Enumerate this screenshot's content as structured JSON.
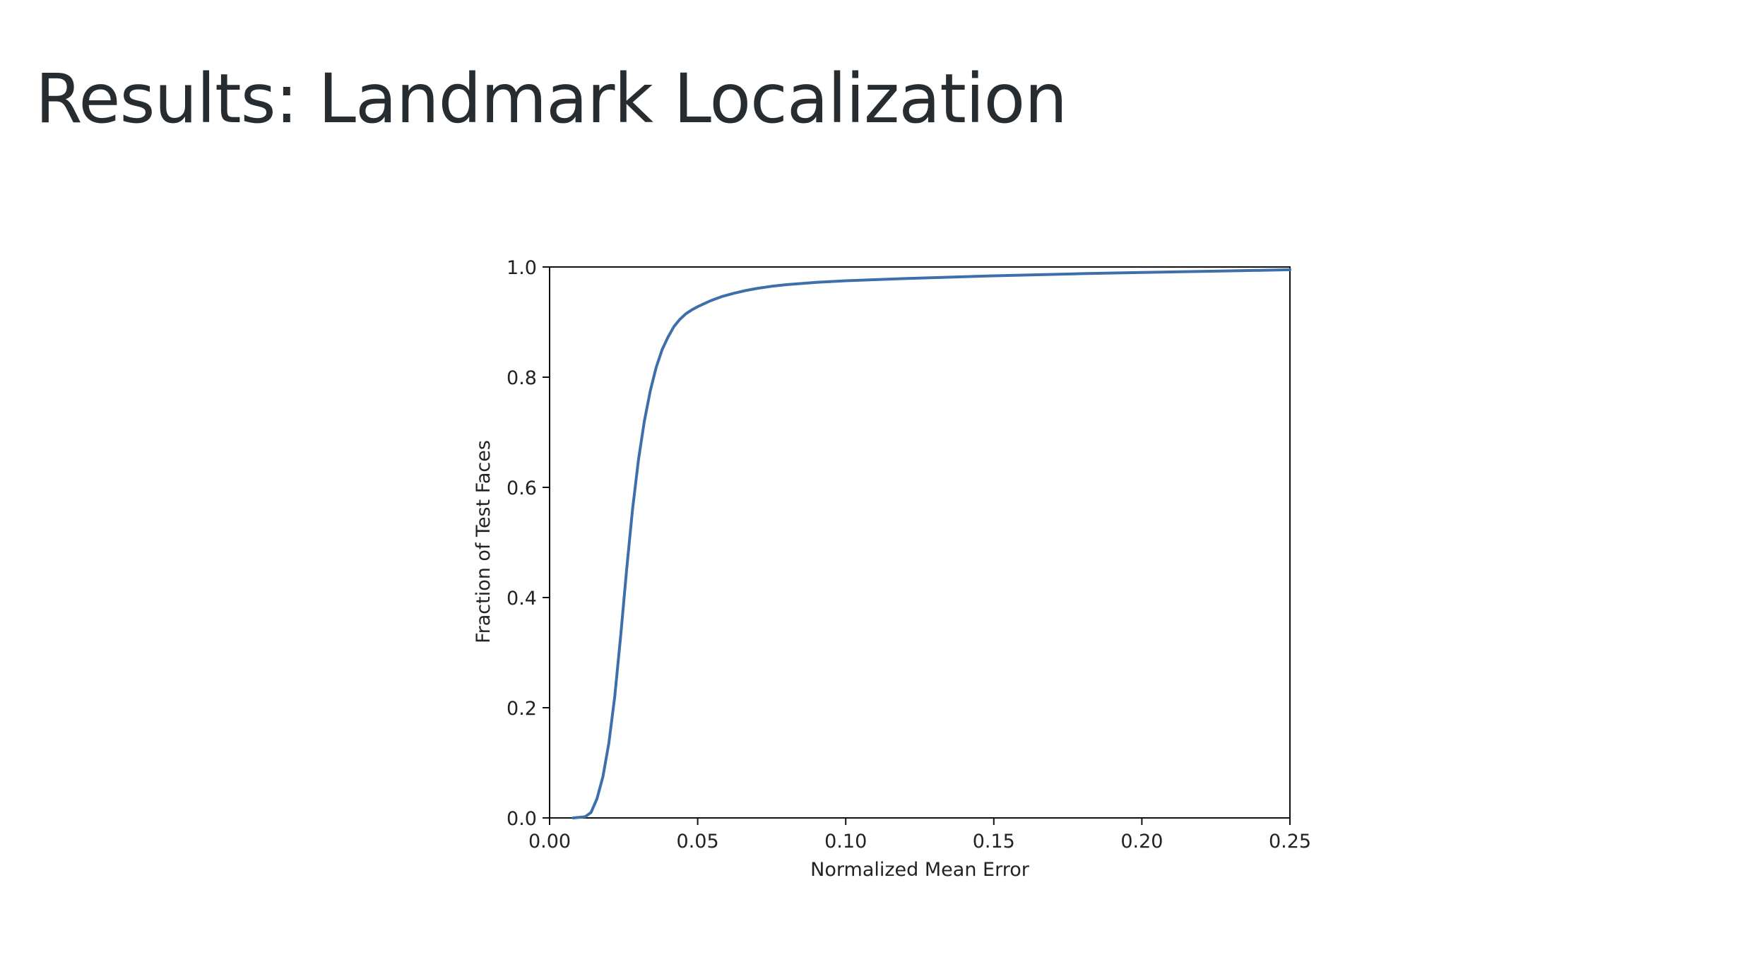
{
  "slide": {
    "title": "Results: Landmark Localization"
  },
  "chart_data": {
    "type": "line",
    "title": "",
    "xlabel": "Normalized Mean Error",
    "ylabel": "Fraction of Test Faces",
    "xlim": [
      0.0,
      0.25
    ],
    "ylim": [
      0.0,
      1.0
    ],
    "xticks": [
      "0.00",
      "0.05",
      "0.10",
      "0.15",
      "0.20",
      "0.25"
    ],
    "yticks": [
      "0.0",
      "0.2",
      "0.4",
      "0.6",
      "0.8",
      "1.0"
    ],
    "grid": false,
    "legend": "none",
    "line_color": "#3d6fab",
    "series": [
      {
        "x": [
          0.008,
          0.012,
          0.014,
          0.016,
          0.018,
          0.02,
          0.022,
          0.024,
          0.026,
          0.028,
          0.03,
          0.032,
          0.034,
          0.036,
          0.038,
          0.04,
          0.042,
          0.044,
          0.046,
          0.048,
          0.05,
          0.054,
          0.058,
          0.062,
          0.066,
          0.07,
          0.075,
          0.08,
          0.09,
          0.1,
          0.12,
          0.15,
          0.18,
          0.2,
          0.23,
          0.25
        ],
        "y": [
          0.0,
          0.002,
          0.01,
          0.035,
          0.075,
          0.135,
          0.22,
          0.33,
          0.45,
          0.56,
          0.65,
          0.72,
          0.775,
          0.818,
          0.85,
          0.873,
          0.892,
          0.905,
          0.915,
          0.922,
          0.928,
          0.938,
          0.946,
          0.952,
          0.957,
          0.961,
          0.965,
          0.968,
          0.972,
          0.975,
          0.979,
          0.984,
          0.988,
          0.99,
          0.993,
          0.995
        ]
      }
    ]
  }
}
